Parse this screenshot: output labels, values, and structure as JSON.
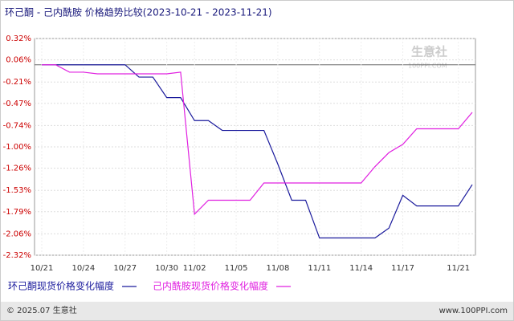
{
  "chart_data": {
    "type": "line",
    "title": "环己酮 - 己内酰胺 价格趋势比较(2023-10-21 - 2023-11-21)",
    "watermark": "生意社",
    "watermark_url": "100PPI.COM",
    "footer_left": "© 2025.07 生意社",
    "footer_right": "www.100PPI.com",
    "categories": [
      "10/21",
      null,
      null,
      "10/24",
      null,
      null,
      "10/27",
      null,
      null,
      "10/30",
      null,
      "11/02",
      null,
      null,
      "11/05",
      null,
      null,
      "11/08",
      null,
      null,
      "11/11",
      null,
      null,
      "11/14",
      null,
      null,
      "11/17",
      null,
      null,
      null,
      "11/21",
      null
    ],
    "series": [
      {
        "name": "环己酮现货价格变化幅度",
        "color": "#1a1a9c",
        "values": [
          0,
          0,
          0,
          0,
          0,
          0,
          0,
          -0.15,
          -0.15,
          -0.4,
          -0.4,
          -0.68,
          -0.68,
          -0.8,
          -0.8,
          -0.8,
          -0.8,
          -1.21,
          -1.65,
          -1.65,
          -2.11,
          -2.11,
          -2.11,
          -2.11,
          -2.11,
          -1.99,
          -1.59,
          -1.72,
          -1.72,
          -1.72,
          -1.72,
          -1.46
        ]
      },
      {
        "name": "己内酰胺现货价格变化幅度",
        "color": "#e020e0",
        "values": [
          0,
          0,
          -0.09,
          -0.09,
          -0.11,
          -0.11,
          -0.11,
          -0.11,
          -0.11,
          -0.11,
          -0.09,
          -1.82,
          -1.65,
          -1.65,
          -1.65,
          -1.65,
          -1.44,
          -1.44,
          -1.44,
          -1.44,
          -1.44,
          -1.44,
          -1.44,
          -1.44,
          -1.24,
          -1.07,
          -0.97,
          -0.78,
          -0.78,
          -0.78,
          -0.78,
          -0.58
        ]
      }
    ],
    "ylim": [
      -2.32,
      0.32
    ],
    "yticks": [
      {
        "value": 0.32,
        "label": "0.32%"
      },
      {
        "value": 0.06,
        "label": "0.06%"
      },
      {
        "value": -0.21,
        "label": "-0.21%"
      },
      {
        "value": -0.47,
        "label": "-0.47%"
      },
      {
        "value": -0.74,
        "label": "-0.74%"
      },
      {
        "value": -1.0,
        "label": "-1.00%"
      },
      {
        "value": -1.26,
        "label": "-1.26%"
      },
      {
        "value": -1.53,
        "label": "-1.53%"
      },
      {
        "value": -1.79,
        "label": "-1.79%"
      },
      {
        "value": -2.06,
        "label": "-2.06%"
      },
      {
        "value": -2.32,
        "label": "-2.32%"
      }
    ],
    "grid": true
  }
}
